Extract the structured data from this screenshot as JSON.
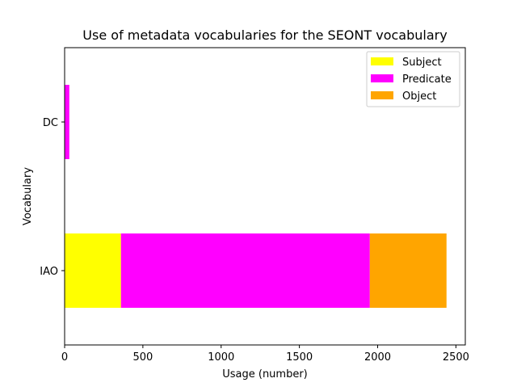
{
  "chart_data": {
    "type": "bar",
    "orientation": "horizontal",
    "stacked": true,
    "title": "Use of metadata vocabularies for the SEONT vocabulary",
    "xlabel": "Usage (number)",
    "ylabel": "Vocabulary",
    "categories": [
      "IAO",
      "DC"
    ],
    "series": [
      {
        "name": "Subject",
        "color": "#ffff00",
        "values": [
          360,
          0
        ]
      },
      {
        "name": "Predicate",
        "color": "#ff00ff",
        "values": [
          1590,
          30
        ]
      },
      {
        "name": "Object",
        "color": "#ffa500",
        "values": [
          490,
          0
        ]
      }
    ],
    "xlim": [
      0,
      2560
    ],
    "xticks": [
      0,
      500,
      1000,
      1500,
      2000,
      2500
    ],
    "grid": false,
    "legend_position": "top-right"
  }
}
